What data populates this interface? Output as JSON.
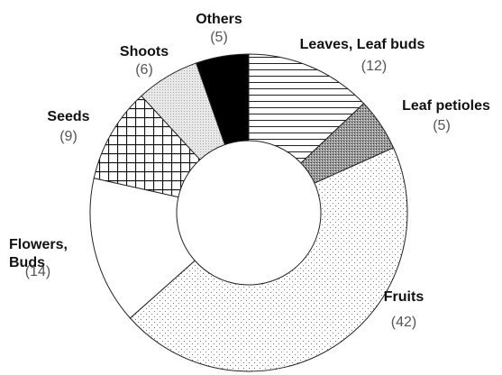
{
  "chart_data": {
    "type": "donut",
    "categories": [
      "Leaves, Leaf buds",
      "Leaf petioles",
      "Fruits",
      "Flowers, Buds",
      "Seeds",
      "Shoots",
      "Others"
    ],
    "values": [
      12,
      5,
      42,
      14,
      9,
      6,
      5
    ],
    "value_labels": [
      "(12)",
      "(5)",
      "(42)",
      "(14)",
      "(9)",
      "(6)",
      "(5)"
    ],
    "patterns": [
      "hlines",
      "darkgray",
      "dots",
      "white",
      "grid",
      "lightdots",
      "black"
    ]
  }
}
